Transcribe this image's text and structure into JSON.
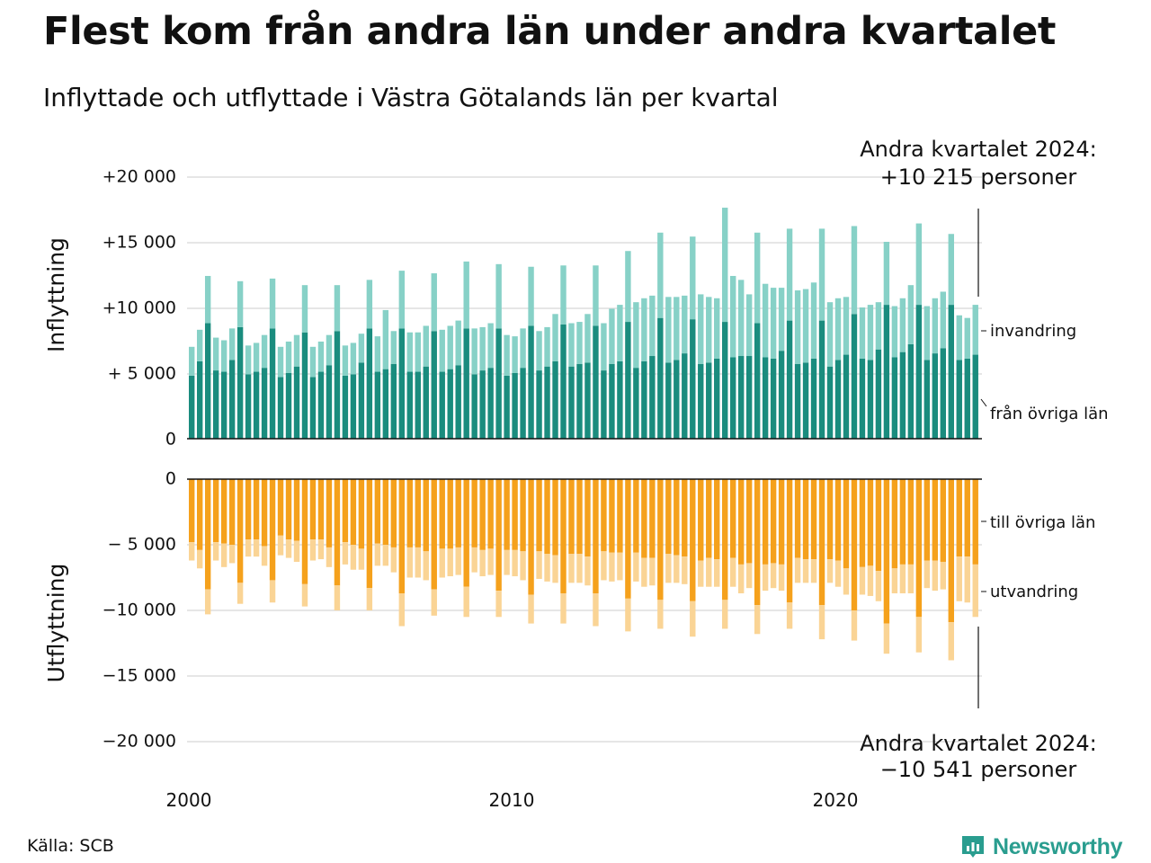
{
  "title": "Flest kom från andra län under andra kvartalet",
  "subtitle": "Inflyttade och utflyttade i Västra Götalands län per kvartal",
  "source": "Källa: SCB",
  "brand": "Newsworthy",
  "colors": {
    "in_other_counties": "#1a8c7e",
    "immigration": "#87d1c7",
    "out_other_counties": "#f5a11c",
    "emigration": "#fad495",
    "grid": "#dddddd",
    "brand": "#2a9d8f"
  },
  "chart_data": {
    "type": "bar",
    "stacked": true,
    "x_unit": "quarter",
    "x_start": "2000 Q1",
    "x_ticks": [
      "2000",
      "2010",
      "2020"
    ],
    "panels": [
      {
        "axis_label": "Inflyttning",
        "y_ticks": [
          "+20 000",
          "+15 000",
          "+10 000",
          "+ 5 000",
          "0"
        ],
        "ylim": [
          0,
          20000
        ],
        "annotation": [
          "Andra kvartalet 2024:",
          "+10 215 personer"
        ],
        "series": [
          {
            "name": "från övriga län",
            "color": "#1a8c7e",
            "values": [
              4800,
              5900,
              8800,
              5200,
              5100,
              6000,
              8500,
              4900,
              5100,
              5400,
              8400,
              4700,
              5000,
              5500,
              8100,
              4700,
              5100,
              5600,
              8200,
              4800,
              4900,
              5800,
              8400,
              5100,
              5300,
              5700,
              8400,
              5100,
              5100,
              5500,
              8200,
              5100,
              5300,
              5600,
              8400,
              4900,
              5200,
              5400,
              8400,
              4800,
              5000,
              5400,
              8600,
              5200,
              5500,
              5900,
              8700,
              5500,
              5700,
              5800,
              8600,
              5200,
              5700,
              5900,
              8900,
              5400,
              5900,
              6300,
              9200,
              5800,
              6000,
              6500,
              9100,
              5700,
              5800,
              6100,
              8900,
              6200,
              6300,
              6300,
              8800,
              6200,
              6100,
              6700,
              9000,
              5700,
              5800,
              6100,
              9000,
              5500,
              6000,
              6400,
              9500,
              6100,
              6000,
              6800,
              10200,
              6200,
              6600,
              7200,
              10200,
              6000,
              6500,
              6900,
              10200,
              6000,
              6100,
              6400
            ]
          },
          {
            "name": "invandring",
            "color": "#87d1c7",
            "values": [
              2200,
              2400,
              3600,
              2500,
              2400,
              2400,
              3500,
              2200,
              2200,
              2500,
              3800,
              2300,
              2400,
              2400,
              3600,
              2300,
              2300,
              2300,
              3500,
              2300,
              2400,
              2200,
              3700,
              2700,
              4500,
              2500,
              4400,
              3000,
              3000,
              3100,
              4400,
              3200,
              3300,
              3400,
              5100,
              3500,
              3300,
              3400,
              4900,
              3100,
              2800,
              3000,
              4500,
              3000,
              3000,
              3600,
              4500,
              3300,
              3200,
              3700,
              4600,
              3600,
              4200,
              4300,
              5400,
              5000,
              4800,
              4600,
              6500,
              5000,
              4800,
              4400,
              6300,
              5300,
              5000,
              4600,
              8700,
              6200,
              5800,
              4700,
              6900,
              5600,
              5400,
              4800,
              7000,
              5600,
              5600,
              5800,
              7000,
              4900,
              4700,
              4400,
              6700,
              3900,
              4200,
              3600,
              4800,
              3900,
              4100,
              4500,
              6200,
              4100,
              4200,
              4300,
              5400,
              3400,
              3100,
              3800
            ]
          }
        ]
      },
      {
        "axis_label": "Utflyttning",
        "y_ticks": [
          "0",
          "− 5 000",
          "−10 000",
          "−15 000",
          "−20 000"
        ],
        "ylim": [
          -20000,
          0
        ],
        "annotation": [
          "Andra kvartalet 2024:",
          "−10 541 personer"
        ],
        "series": [
          {
            "name": "till övriga län",
            "color": "#f5a11c",
            "values": [
              -4800,
              -5400,
              -8400,
              -4800,
              -4900,
              -5000,
              -7900,
              -4600,
              -4600,
              -5100,
              -7700,
              -4300,
              -4600,
              -4700,
              -8000,
              -4600,
              -4600,
              -5200,
              -8100,
              -4800,
              -5000,
              -5300,
              -8300,
              -4900,
              -5000,
              -5200,
              -8700,
              -5200,
              -5200,
              -5500,
              -8400,
              -5300,
              -5300,
              -5200,
              -8200,
              -5200,
              -5400,
              -5300,
              -8500,
              -5400,
              -5400,
              -5500,
              -8800,
              -5500,
              -5700,
              -5800,
              -8700,
              -5700,
              -5700,
              -5900,
              -8700,
              -5500,
              -5600,
              -5600,
              -9100,
              -5600,
              -6000,
              -6000,
              -9200,
              -5700,
              -5800,
              -5900,
              -9300,
              -6200,
              -6000,
              -6100,
              -9200,
              -6000,
              -6500,
              -6400,
              -9600,
              -6500,
              -6400,
              -6500,
              -9400,
              -6000,
              -6100,
              -6100,
              -9600,
              -6100,
              -6200,
              -6800,
              -10000,
              -6700,
              -6600,
              -7000,
              -11000,
              -6800,
              -6500,
              -6500,
              -10500,
              -6200,
              -6200,
              -6300,
              -10900,
              -5900,
              -5900,
              -6500
            ]
          },
          {
            "name": "utvandring",
            "color": "#fad495",
            "values": [
              -1400,
              -1400,
              -1900,
              -1400,
              -1800,
              -1400,
              -1600,
              -1300,
              -1300,
              -1500,
              -1700,
              -1500,
              -1400,
              -1600,
              -1700,
              -1600,
              -1500,
              -1500,
              -1900,
              -1700,
              -1900,
              -1600,
              -1700,
              -1700,
              -1600,
              -1900,
              -2500,
              -2300,
              -2300,
              -2200,
              -2000,
              -2200,
              -2100,
              -2100,
              -2300,
              -1900,
              -2000,
              -2000,
              -2000,
              -1900,
              -2000,
              -2200,
              -2200,
              -2100,
              -2100,
              -2100,
              -2300,
              -2200,
              -2200,
              -2200,
              -2500,
              -2200,
              -2200,
              -2100,
              -2500,
              -2200,
              -2200,
              -2100,
              -2200,
              -2200,
              -2100,
              -2100,
              -2700,
              -2000,
              -2200,
              -2100,
              -2200,
              -2200,
              -2200,
              -1900,
              -2200,
              -2000,
              -1900,
              -2000,
              -2000,
              -1900,
              -1800,
              -1800,
              -2600,
              -1800,
              -2000,
              -2000,
              -2300,
              -2100,
              -2300,
              -2300,
              -2300,
              -1900,
              -2200,
              -2200,
              -2700,
              -2100,
              -2300,
              -2100,
              -2900,
              -3400,
              -3500,
              -4000
            ]
          }
        ]
      }
    ]
  }
}
